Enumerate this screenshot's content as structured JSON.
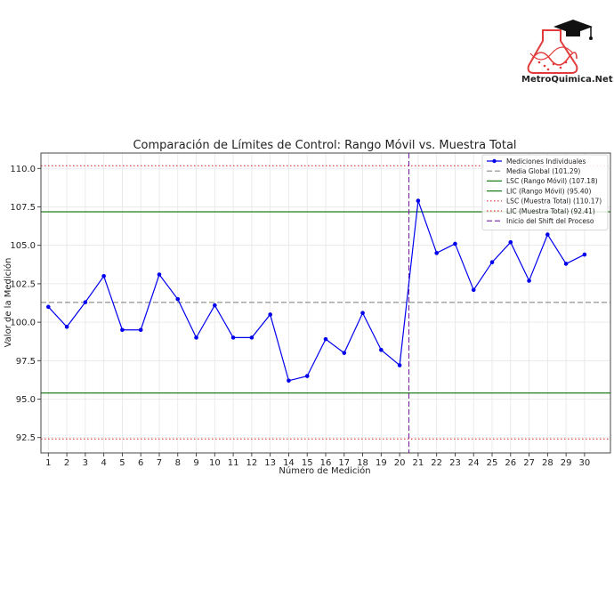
{
  "brand": {
    "name": "MetroQuimica.Net",
    "colors": {
      "accent": "#e23b3b",
      "cap": "#111111"
    }
  },
  "chart_data": {
    "type": "line",
    "title": "Comparación de Límites de Control: Rango Móvil vs. Muestra Total",
    "xlabel": "Número de Medición",
    "ylabel": "Valor de la Medición",
    "x": [
      1,
      2,
      3,
      4,
      5,
      6,
      7,
      8,
      9,
      10,
      11,
      12,
      13,
      14,
      15,
      16,
      17,
      18,
      19,
      20,
      21,
      22,
      23,
      24,
      25,
      26,
      27,
      28,
      29,
      30
    ],
    "xlim": [
      0.6,
      31.4
    ],
    "ylim": [
      91.5,
      111
    ],
    "yticks": [
      92.5,
      95.0,
      97.5,
      100.0,
      102.5,
      105.0,
      107.5,
      110.0
    ],
    "ytick_labels": [
      "92.5",
      "95.0",
      "97.5",
      "100.0",
      "102.5",
      "105.0",
      "107.5",
      "110.0"
    ],
    "grid": true,
    "legend_position": "top-right",
    "series": [
      {
        "name": "Mediciones Individuales",
        "color": "#0000ee",
        "values": [
          101.0,
          99.7,
          101.3,
          103.0,
          99.5,
          99.5,
          103.1,
          101.5,
          99.0,
          101.1,
          99.0,
          99.0,
          100.5,
          96.2,
          96.5,
          98.9,
          98.0,
          100.6,
          98.2,
          97.2,
          107.9,
          104.5,
          105.1,
          102.1,
          103.9,
          105.2,
          102.7,
          105.7,
          103.8,
          104.4
        ]
      }
    ],
    "reference_lines": [
      {
        "name": "Media Global (101.29)",
        "orientation": "horizontal",
        "value": 101.29,
        "color": "#888888",
        "style": "dashed"
      },
      {
        "name": "LSC (Rango Móvil) (107.18)",
        "orientation": "horizontal",
        "value": 107.18,
        "color": "#1e7d1e",
        "style": "solid"
      },
      {
        "name": "LIC (Rango Móvil) (95.40)",
        "orientation": "horizontal",
        "value": 95.4,
        "color": "#1e7d1e",
        "style": "solid"
      },
      {
        "name": "LSC (Muestra Total) (110.17)",
        "orientation": "horizontal",
        "value": 110.17,
        "color": "#e03030",
        "style": "dotted"
      },
      {
        "name": "LIC (Muestra Total) (92.41)",
        "orientation": "horizontal",
        "value": 92.41,
        "color": "#e03030",
        "style": "dotted"
      },
      {
        "name": "Inicio del Shift del Proceso",
        "orientation": "vertical",
        "value": 20.5,
        "color": "#7a1fa2",
        "style": "dashed"
      }
    ]
  }
}
